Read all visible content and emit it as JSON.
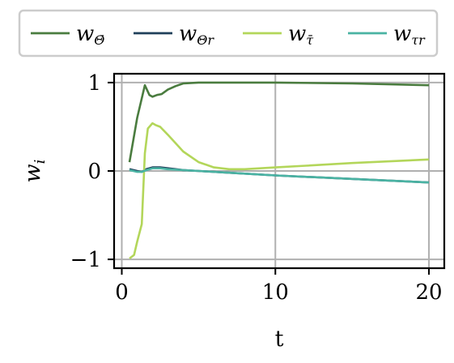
{
  "chart_data": {
    "type": "line",
    "xlabel": "t",
    "ylabel": "w",
    "ylabel_subscript": "i",
    "xlim": [
      -0.5,
      21
    ],
    "ylim": [
      -1.1,
      1.1
    ],
    "xticks": [
      0,
      10,
      20
    ],
    "xtick_labels": [
      "0",
      "10",
      "20"
    ],
    "yticks": [
      -1,
      0,
      1
    ],
    "ytick_labels": [
      "−1",
      "0",
      "1"
    ],
    "grid": true,
    "legend_position": "top",
    "series": [
      {
        "name": "w_Θ̄",
        "legend_main": "w",
        "legend_sub": "Θ̄",
        "color": "#4a7c3f",
        "x": [
          0.5,
          1.0,
          1.5,
          1.8,
          2.0,
          2.3,
          2.6,
          3.0,
          3.5,
          4.0,
          5.0,
          6.0,
          8.0,
          10.0,
          15.0,
          20.0
        ],
        "y": [
          0.1,
          0.6,
          0.97,
          0.86,
          0.84,
          0.86,
          0.87,
          0.92,
          0.96,
          0.99,
          1.0,
          1.0,
          1.0,
          1.0,
          0.99,
          0.97
        ]
      },
      {
        "name": "w_Θr",
        "legend_main": "w",
        "legend_sub": "Θr",
        "color": "#1f3f5a",
        "x": [
          0.5,
          1.0,
          1.3,
          1.6,
          2.0,
          2.5,
          3.0,
          4.0,
          5.0,
          7.0,
          10.0,
          15.0,
          20.0
        ],
        "y": [
          0.02,
          0.0,
          -0.01,
          0.02,
          0.04,
          0.04,
          0.03,
          0.01,
          0.0,
          -0.02,
          -0.05,
          -0.09,
          -0.13
        ]
      },
      {
        "name": "w_τ̄",
        "legend_main": "w",
        "legend_sub": "τ̄",
        "color": "#b3d65a",
        "x": [
          0.5,
          0.8,
          1.0,
          1.3,
          1.5,
          1.7,
          2.0,
          2.2,
          2.5,
          3.0,
          4.0,
          5.0,
          6.0,
          7.0,
          8.0,
          10.0,
          12.0,
          15.0,
          20.0
        ],
        "y": [
          -0.99,
          -0.95,
          -0.8,
          -0.6,
          0.2,
          0.48,
          0.54,
          0.52,
          0.5,
          0.41,
          0.22,
          0.1,
          0.04,
          0.02,
          0.02,
          0.04,
          0.06,
          0.09,
          0.13
        ]
      },
      {
        "name": "w_τr",
        "legend_main": "w",
        "legend_sub": "τr",
        "color": "#4ab3a3",
        "x": [
          0.5,
          1.0,
          1.3,
          1.6,
          2.0,
          2.5,
          3.0,
          4.0,
          5.0,
          7.0,
          10.0,
          15.0,
          20.0
        ],
        "y": [
          0.01,
          -0.01,
          -0.01,
          0.01,
          0.03,
          0.03,
          0.02,
          0.01,
          0.0,
          -0.02,
          -0.05,
          -0.09,
          -0.13
        ]
      }
    ]
  }
}
